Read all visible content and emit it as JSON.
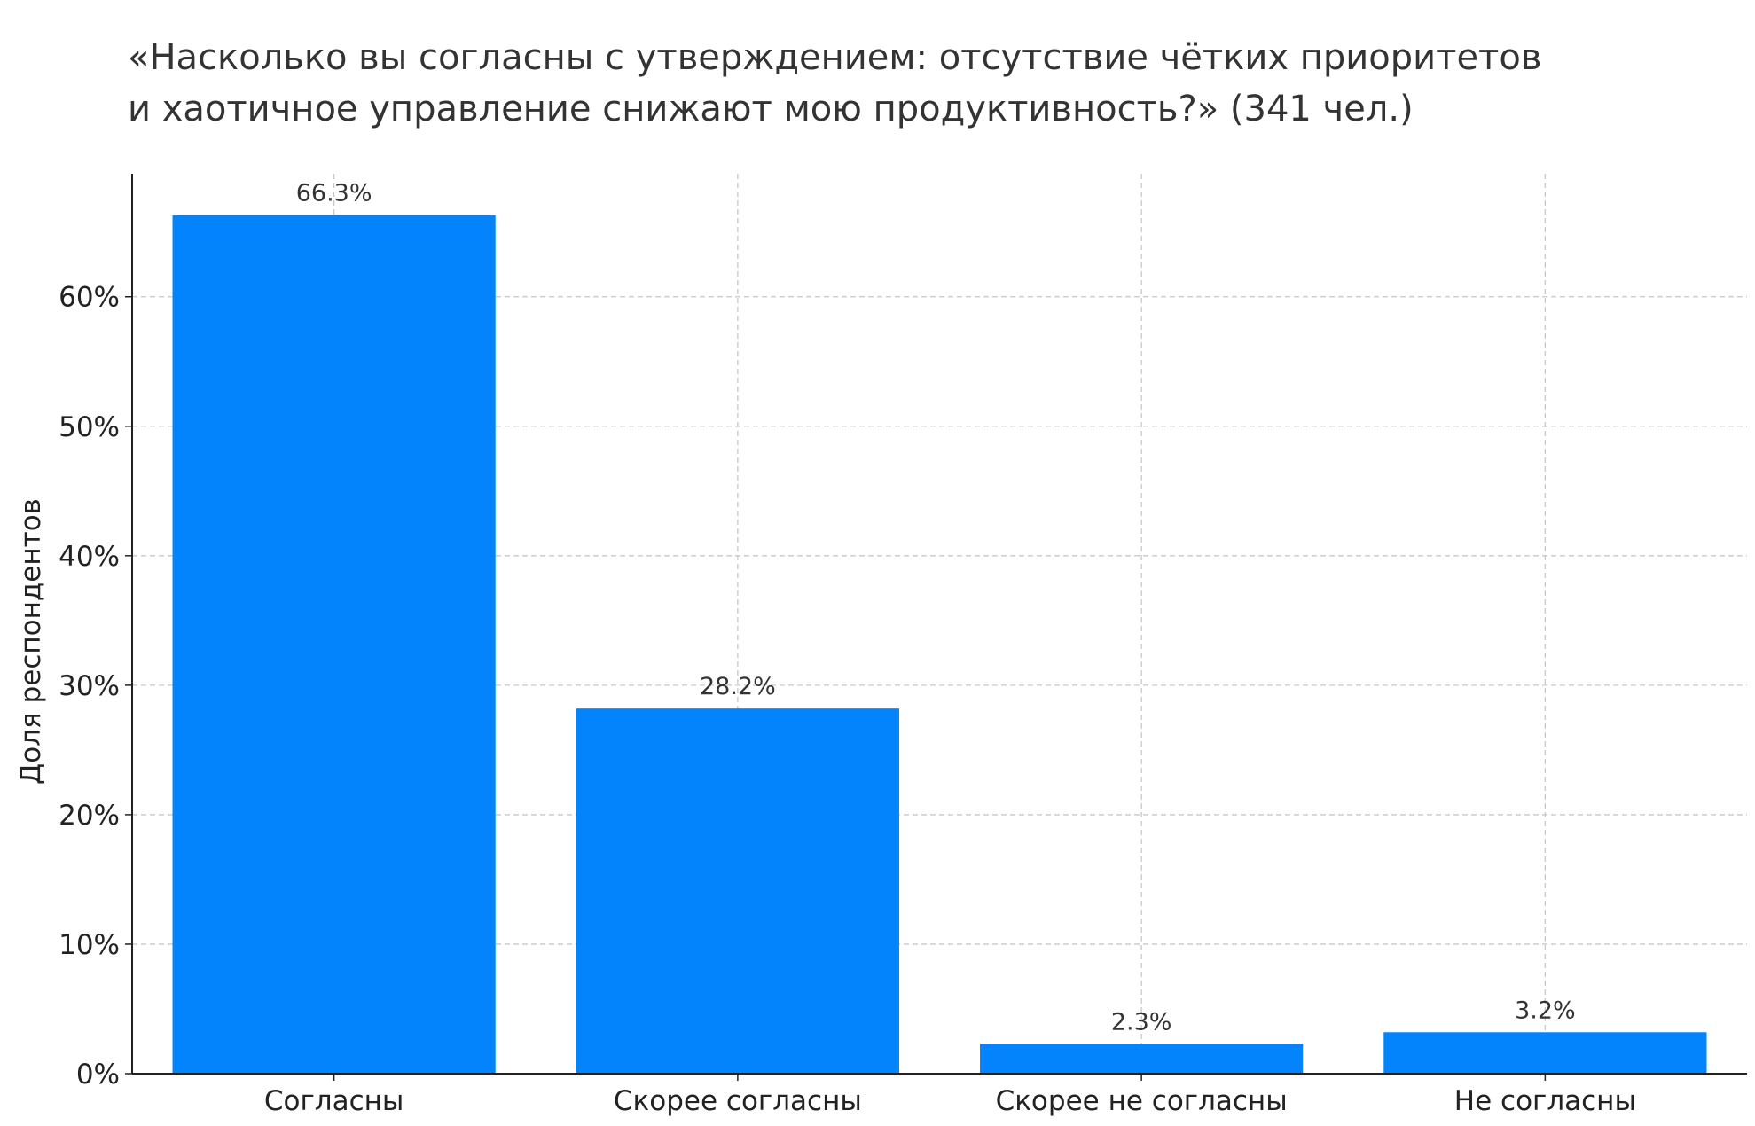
{
  "chart_data": {
    "type": "bar",
    "title_lines": [
      "«Насколько вы согласны с утверждением: отсутствие чётких приоритетов",
      "и хаотичное управление снижают мою продуктивность?» (341 чел.)"
    ],
    "categories": [
      "Согласны",
      "Скорее согласны",
      "Скорее не согласны",
      "Не согласны"
    ],
    "values": [
      66.3,
      28.2,
      2.3,
      3.2
    ],
    "data_labels": [
      "66.3%",
      "28.2%",
      "2.3%",
      "3.2%"
    ],
    "xlabel": "",
    "ylabel": "Доля респондентов",
    "ylim": [
      0,
      69.5
    ],
    "yticks": [
      0,
      10,
      20,
      30,
      40,
      50,
      60
    ],
    "ytick_labels": [
      "0%",
      "10%",
      "20%",
      "30%",
      "40%",
      "50%",
      "60%"
    ],
    "grid": true,
    "bar_color": "#0384FD"
  }
}
